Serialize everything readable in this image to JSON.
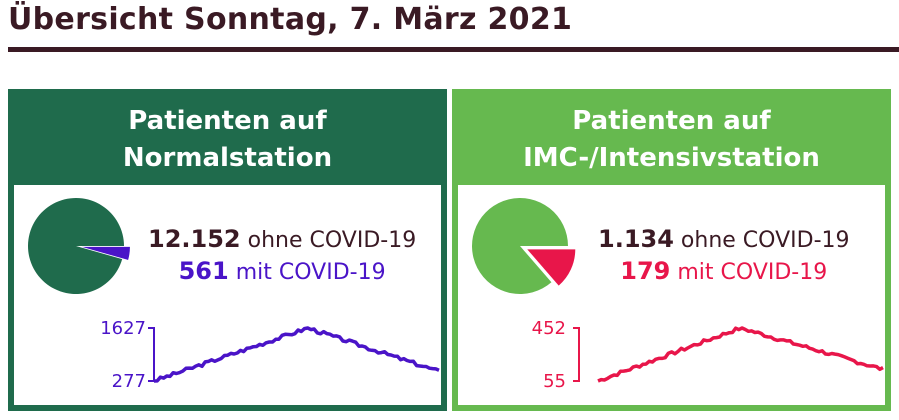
{
  "header": {
    "title": "Übersicht Sonntag, 7. März 2021"
  },
  "cards": [
    {
      "title_line1": "Patienten auf",
      "title_line2": "Normalstation",
      "colors": {
        "background": "#1f6b4c",
        "pie_main": "#1f6b4c",
        "accent": "#4a14c8"
      },
      "without_covid": {
        "value": "12.152",
        "label": "ohne COVID-19",
        "count": 12152
      },
      "with_covid": {
        "value": "561",
        "label": "mit COVID-19",
        "count": 561
      },
      "sparkline": {
        "max_label": "1627",
        "min_label": "277",
        "max": 1627,
        "min": 277
      }
    },
    {
      "title_line1": "Patienten auf",
      "title_line2": "IMC-/Intensivstation",
      "colors": {
        "background": "#66b94f",
        "pie_main": "#66b94f",
        "accent": "#e8164a"
      },
      "without_covid": {
        "value": "1.134",
        "label": "ohne COVID-19",
        "count": 1134
      },
      "with_covid": {
        "value": "179",
        "label": "mit COVID-19",
        "count": 179
      },
      "sparkline": {
        "max_label": "452",
        "min_label": "55",
        "max": 452,
        "min": 55
      }
    }
  ]
}
